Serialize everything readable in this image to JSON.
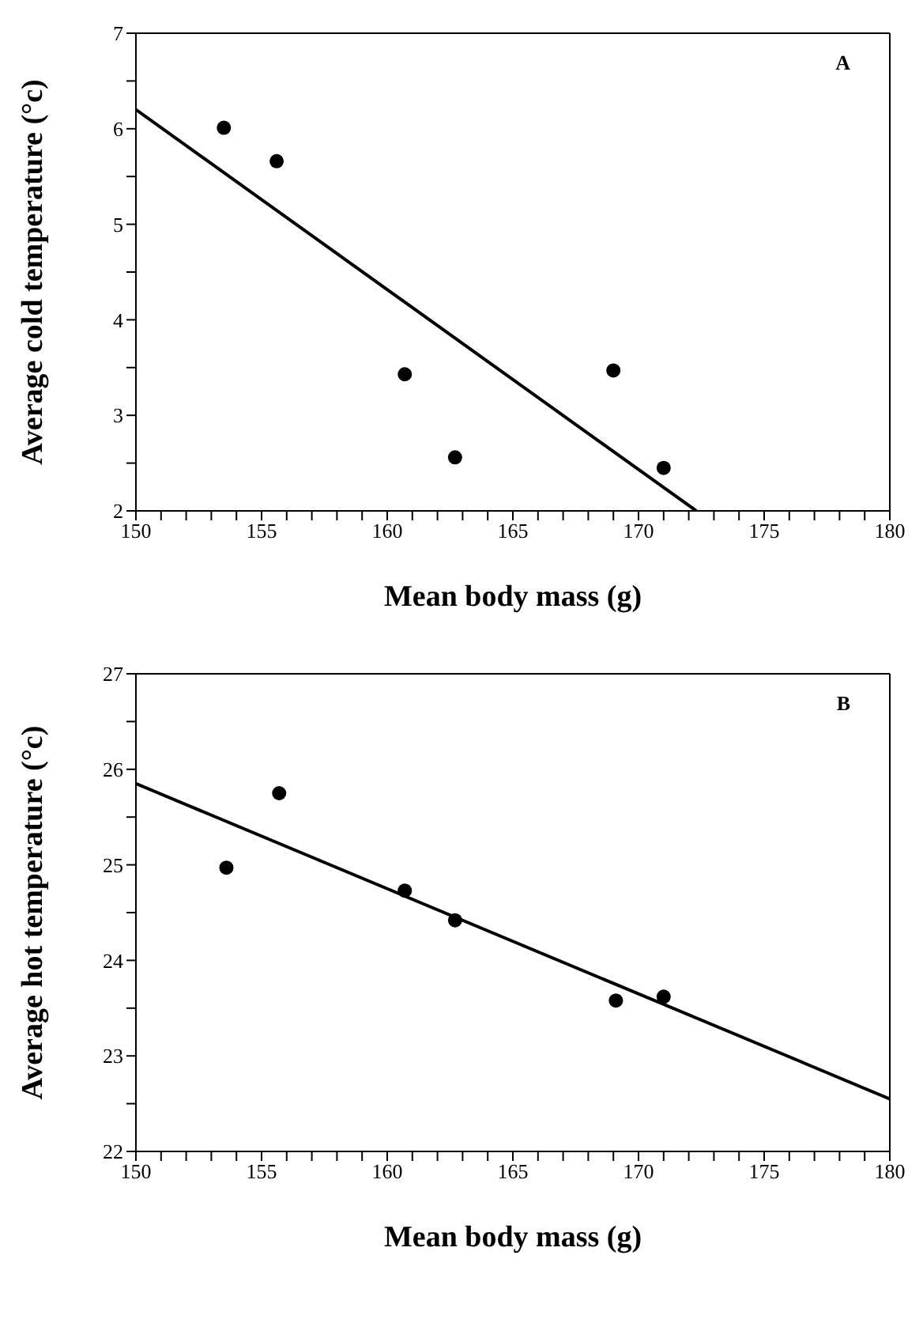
{
  "chart_data": [
    {
      "type": "scatter",
      "xlabel": "Mean body mass (g)",
      "ylabel": "Average cold temperature (°c)",
      "annotations": [
        "A"
      ],
      "line_style": "solid",
      "grid": false,
      "xlim": [
        150,
        180
      ],
      "ylim": [
        2,
        7
      ],
      "xticks": [
        150,
        {
          "value": 151,
          "label": null
        },
        {
          "value": 152,
          "label": null
        },
        {
          "value": 153,
          "label": null
        },
        {
          "value": 154,
          "label": null
        },
        155,
        {
          "value": 156,
          "label": null
        },
        {
          "value": 157,
          "label": null
        },
        {
          "value": 158,
          "label": null
        },
        {
          "value": 159,
          "label": null
        },
        160,
        {
          "value": 161,
          "label": null
        },
        {
          "value": 162,
          "label": null
        },
        {
          "value": 163,
          "label": null
        },
        {
          "value": 164,
          "label": null
        },
        165,
        {
          "value": 166,
          "label": null
        },
        {
          "value": 167,
          "label": null
        },
        {
          "value": 168,
          "label": null
        },
        {
          "value": 169,
          "label": null
        },
        170,
        {
          "value": 171,
          "label": null
        },
        {
          "value": 172,
          "label": null
        },
        {
          "value": 173,
          "label": null
        },
        {
          "value": 174,
          "label": null
        },
        175,
        {
          "value": 176,
          "label": null
        },
        {
          "value": 177,
          "label": null
        },
        {
          "value": 178,
          "label": null
        },
        {
          "value": 179,
          "label": null
        },
        180
      ],
      "yticks": [
        2,
        {
          "value": 2.5,
          "label": null
        },
        3,
        {
          "value": 3.5,
          "label": null
        },
        4,
        {
          "value": 4.5,
          "label": null
        },
        5,
        {
          "value": 5.5,
          "label": null
        },
        6,
        {
          "value": 6.5,
          "label": null
        },
        7
      ],
      "series": [
        {
          "marker": "circle",
          "color": "#000000",
          "x": [
            153.5,
            155.6,
            160.7,
            162.7,
            169.0,
            171.0
          ],
          "values": [
            6.01,
            5.66,
            3.43,
            2.56,
            3.47,
            2.45
          ]
        },
        {
          "type": "line",
          "color": "#000000",
          "x": [
            150,
            172.3
          ],
          "values": [
            6.2,
            2
          ]
        }
      ]
    },
    {
      "type": "scatter",
      "xlabel": "Mean body mass (g)",
      "ylabel": "Average hot temperature (°c)",
      "annotations": [
        "B"
      ],
      "line_style": "solid",
      "grid": false,
      "xlim": [
        150,
        180
      ],
      "ylim": [
        22,
        27
      ],
      "xticks": [
        150,
        {
          "value": 151,
          "label": null
        },
        {
          "value": 152,
          "label": null
        },
        {
          "value": 153,
          "label": null
        },
        {
          "value": 154,
          "label": null
        },
        155,
        {
          "value": 156,
          "label": null
        },
        {
          "value": 157,
          "label": null
        },
        {
          "value": 158,
          "label": null
        },
        {
          "value": 159,
          "label": null
        },
        160,
        {
          "value": 161,
          "label": null
        },
        {
          "value": 162,
          "label": null
        },
        {
          "value": 163,
          "label": null
        },
        {
          "value": 164,
          "label": null
        },
        165,
        {
          "value": 166,
          "label": null
        },
        {
          "value": 167,
          "label": null
        },
        {
          "value": 168,
          "label": null
        },
        {
          "value": 169,
          "label": null
        },
        170,
        {
          "value": 171,
          "label": null
        },
        {
          "value": 172,
          "label": null
        },
        {
          "value": 173,
          "label": null
        },
        {
          "value": 174,
          "label": null
        },
        175,
        {
          "value": 176,
          "label": null
        },
        {
          "value": 177,
          "label": null
        },
        {
          "value": 178,
          "label": null
        },
        {
          "value": 179,
          "label": null
        },
        180
      ],
      "yticks": [
        22,
        {
          "value": 22.5,
          "label": null
        },
        23,
        {
          "value": 23.5,
          "label": null
        },
        24,
        {
          "value": 24.5,
          "label": null
        },
        25,
        {
          "value": 25.5,
          "label": null
        },
        26,
        {
          "value": 26.5,
          "label": null
        },
        27
      ],
      "series": [
        {
          "marker": "circle",
          "color": "#000000",
          "x": [
            153.6,
            155.7,
            160.7,
            162.7,
            169.1,
            171.0
          ],
          "values": [
            24.97,
            25.75,
            24.73,
            24.42,
            23.58,
            23.62
          ]
        },
        {
          "type": "line",
          "color": "#000000",
          "x": [
            150,
            180
          ],
          "values": [
            25.85,
            22.55
          ]
        }
      ]
    }
  ]
}
